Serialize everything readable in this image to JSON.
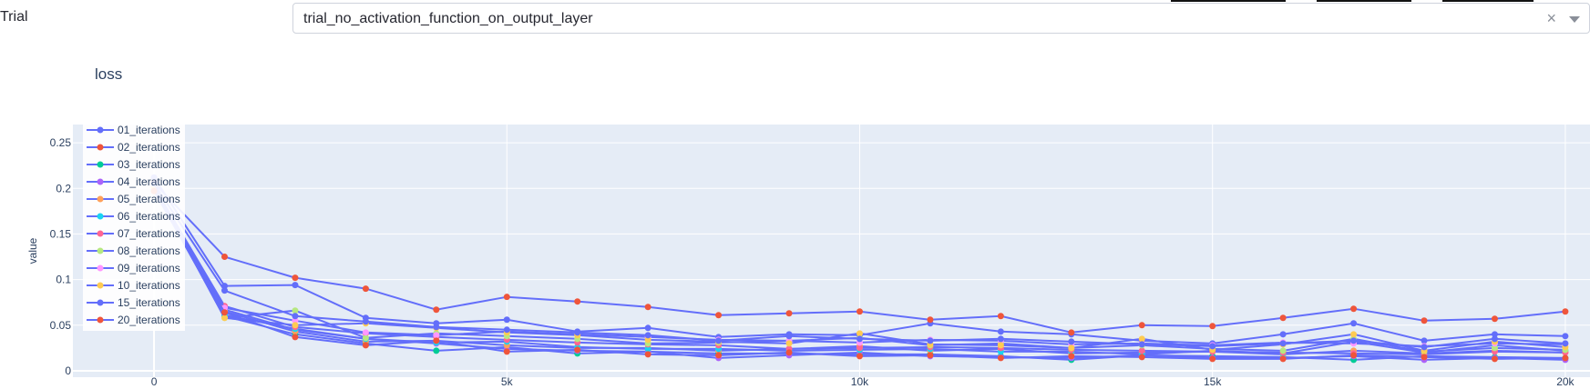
{
  "trial": {
    "label": "Trial",
    "selected": "trial_no_activation_function_on_output_layer",
    "clear_glyph": "×"
  },
  "chart_data": {
    "type": "line",
    "title": "loss",
    "xlabel": "",
    "ylabel": "value",
    "xlim": [
      -1150,
      20350
    ],
    "ylim": [
      -0.007,
      0.27
    ],
    "x_ticks": [
      0,
      5000,
      10000,
      15000,
      20000
    ],
    "x_tick_labels": [
      "0",
      "5k",
      "10k",
      "15k",
      "20k"
    ],
    "y_ticks": [
      0,
      0.05,
      0.1,
      0.15,
      0.2,
      0.25
    ],
    "y_tick_labels": [
      "0",
      "0.05",
      "0.1",
      "0.15",
      "0.2",
      "0.25"
    ],
    "grid": true,
    "legend_position": "top-left",
    "line_color": "#636efa",
    "x": [
      0,
      1000,
      2000,
      3000,
      4000,
      5000,
      6000,
      7000,
      8000,
      9000,
      10000,
      11000,
      12000,
      13000,
      14000,
      15000,
      16000,
      17000,
      18000,
      19000,
      20000
    ],
    "series": [
      {
        "name": "01_iterations",
        "color": "#636efa",
        "values": [
          0.212,
          0.093,
          0.094,
          0.058,
          0.052,
          0.056,
          0.043,
          0.047,
          0.037,
          0.04,
          0.039,
          0.052,
          0.043,
          0.04,
          0.033,
          0.03,
          0.04,
          0.052,
          0.033,
          0.04,
          0.038
        ]
      },
      {
        "name": "02_iterations",
        "color": "#ef553b",
        "values": [
          0.206,
          0.125,
          0.102,
          0.09,
          0.067,
          0.081,
          0.076,
          0.07,
          0.061,
          0.063,
          0.065,
          0.056,
          0.06,
          0.042,
          0.05,
          0.049,
          0.058,
          0.068,
          0.055,
          0.057,
          0.065
        ]
      },
      {
        "name": "03_iterations",
        "color": "#00cc96",
        "values": [
          0.198,
          0.06,
          0.04,
          0.03,
          0.022,
          0.026,
          0.019,
          0.021,
          0.019,
          0.019,
          0.018,
          0.018,
          0.016,
          0.012,
          0.017,
          0.016,
          0.015,
          0.012,
          0.016,
          0.015,
          0.014
        ]
      },
      {
        "name": "04_iterations",
        "color": "#ab63fa",
        "values": [
          0.2,
          0.067,
          0.045,
          0.035,
          0.03,
          0.024,
          0.022,
          0.021,
          0.014,
          0.017,
          0.02,
          0.016,
          0.015,
          0.014,
          0.017,
          0.014,
          0.014,
          0.016,
          0.012,
          0.014,
          0.012
        ]
      },
      {
        "name": "05_iterations",
        "color": "#ffa15a",
        "values": [
          0.201,
          0.065,
          0.043,
          0.032,
          0.033,
          0.028,
          0.025,
          0.025,
          0.022,
          0.024,
          0.027,
          0.022,
          0.024,
          0.019,
          0.02,
          0.021,
          0.018,
          0.022,
          0.019,
          0.022,
          0.02
        ]
      },
      {
        "name": "06_iterations",
        "color": "#19d3f3",
        "values": [
          0.199,
          0.061,
          0.046,
          0.035,
          0.031,
          0.032,
          0.026,
          0.024,
          0.024,
          0.022,
          0.023,
          0.024,
          0.021,
          0.021,
          0.018,
          0.022,
          0.019,
          0.032,
          0.02,
          0.028,
          0.022
        ]
      },
      {
        "name": "07_iterations",
        "color": "#ff6692",
        "values": [
          0.202,
          0.071,
          0.048,
          0.041,
          0.037,
          0.034,
          0.031,
          0.029,
          0.028,
          0.024,
          0.025,
          0.026,
          0.025,
          0.023,
          0.022,
          0.021,
          0.02,
          0.019,
          0.018,
          0.021,
          0.02
        ]
      },
      {
        "name": "08_iterations",
        "color": "#b6e880",
        "values": [
          0.203,
          0.058,
          0.066,
          0.036,
          0.041,
          0.038,
          0.035,
          0.03,
          0.031,
          0.033,
          0.036,
          0.028,
          0.03,
          0.025,
          0.028,
          0.024,
          0.022,
          0.035,
          0.021,
          0.025,
          0.023
        ]
      },
      {
        "name": "09_iterations",
        "color": "#ff97ff",
        "values": [
          0.2,
          0.069,
          0.055,
          0.042,
          0.039,
          0.043,
          0.04,
          0.037,
          0.034,
          0.033,
          0.031,
          0.034,
          0.033,
          0.029,
          0.03,
          0.028,
          0.031,
          0.03,
          0.027,
          0.03,
          0.029
        ]
      },
      {
        "name": "10_iterations",
        "color": "#fecb52",
        "values": [
          0.201,
          0.058,
          0.05,
          0.052,
          0.047,
          0.042,
          0.039,
          0.034,
          0.032,
          0.03,
          0.041,
          0.029,
          0.028,
          0.025,
          0.035,
          0.023,
          0.029,
          0.04,
          0.022,
          0.032,
          0.026
        ]
      },
      {
        "name": "15_iterations",
        "color": "#636efa",
        "values": [
          0.205,
          0.088,
          0.06,
          0.054,
          0.048,
          0.045,
          0.042,
          0.039,
          0.033,
          0.038,
          0.035,
          0.033,
          0.035,
          0.032,
          0.029,
          0.027,
          0.03,
          0.033,
          0.026,
          0.035,
          0.03
        ]
      },
      {
        "name": "20_iterations",
        "color": "#ef553b",
        "values": [
          0.197,
          0.064,
          0.037,
          0.028,
          0.033,
          0.021,
          0.023,
          0.018,
          0.017,
          0.02,
          0.016,
          0.017,
          0.014,
          0.016,
          0.015,
          0.013,
          0.013,
          0.017,
          0.015,
          0.013,
          0.014
        ]
      }
    ]
  }
}
